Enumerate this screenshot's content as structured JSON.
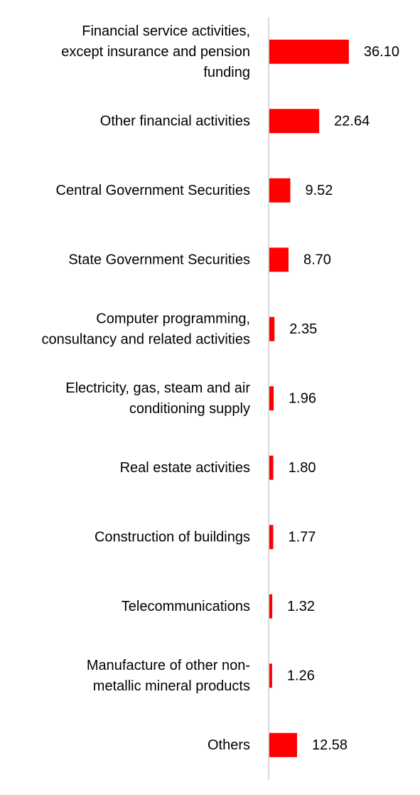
{
  "chart_data": {
    "type": "bar",
    "orientation": "horizontal",
    "categories": [
      [
        "Financial service activities,",
        "except insurance and pension",
        "funding"
      ],
      [
        "Other financial activities"
      ],
      [
        "Central Government Securities"
      ],
      [
        "State Government Securities"
      ],
      [
        "Computer programming,",
        "consultancy and related activities"
      ],
      [
        "Electricity, gas, steam and air",
        "conditioning supply"
      ],
      [
        "Real estate activities"
      ],
      [
        "Construction of buildings"
      ],
      [
        "Telecommunications"
      ],
      [
        "Manufacture of other non-",
        "metallic mineral products"
      ],
      [
        "Others"
      ]
    ],
    "values": [
      36.1,
      22.64,
      9.52,
      8.7,
      2.35,
      1.96,
      1.8,
      1.77,
      1.32,
      1.26,
      12.58
    ],
    "value_labels": [
      "36.10",
      "22.64",
      "9.52",
      "8.70",
      "2.35",
      "1.96",
      "1.80",
      "1.77",
      "1.32",
      "1.26",
      "12.58"
    ],
    "bar_color": "#ff0000",
    "axis_color": "#d9d9d9",
    "grid": false,
    "legend": "none",
    "xlim": [
      0,
      40
    ]
  }
}
